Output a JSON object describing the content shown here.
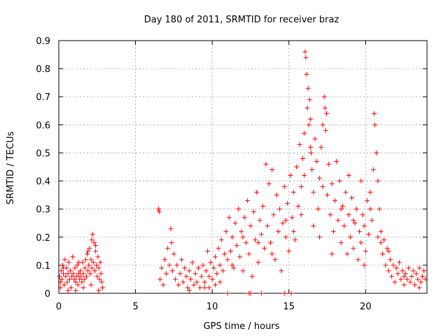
{
  "chart_data": {
    "type": "scatter",
    "title": "Day 180 of 2011, SRMTID for receiver braz",
    "xlabel": "GPS time / hours",
    "ylabel": "SRMTID / TECUs",
    "xlim": [
      0,
      24
    ],
    "ylim": [
      0,
      0.9
    ],
    "xticks": [
      0,
      5,
      10,
      15,
      20
    ],
    "xtick_labels": [
      "0",
      "5",
      "10",
      "15",
      "20"
    ],
    "yticks": [
      0,
      0.1,
      0.2,
      0.3,
      0.4,
      0.5,
      0.6,
      0.7,
      0.8,
      0.9
    ],
    "ytick_labels": [
      "0",
      "0.1",
      "0.2",
      "0.3",
      "0.4",
      "0.5",
      "0.6",
      "0.7",
      "0.8",
      "0.9"
    ],
    "grid": true,
    "marker": "+",
    "color": "#ff0000",
    "series": [
      {
        "name": "SRMTID",
        "points": [
          [
            0.05,
            0.06
          ],
          [
            0.1,
            0.04
          ],
          [
            0.15,
            0.08
          ],
          [
            0.2,
            0.05
          ],
          [
            0.25,
            0.1
          ],
          [
            0.3,
            0.07
          ],
          [
            0.35,
            0.03
          ],
          [
            0.4,
            0.12
          ],
          [
            0.45,
            0.06
          ],
          [
            0.5,
            0.09
          ],
          [
            0.55,
            0.04
          ],
          [
            0.6,
            0.07
          ],
          [
            0.65,
            0.11
          ],
          [
            0.7,
            0.05
          ],
          [
            0.75,
            0.08
          ],
          [
            0.8,
            0.02
          ],
          [
            0.85,
            0.06
          ],
          [
            0.9,
            0.13
          ],
          [
            0.95,
            0.07
          ],
          [
            1.0,
            0.05
          ],
          [
            1.05,
            0.09
          ],
          [
            1.1,
            0.04
          ],
          [
            1.15,
            0.06
          ],
          [
            1.2,
            0.1
          ],
          [
            1.25,
            0.03
          ],
          [
            1.3,
            0.07
          ],
          [
            1.35,
            0.05
          ],
          [
            1.4,
            0.08
          ],
          [
            1.45,
            0.06
          ],
          [
            1.5,
            0.04
          ],
          [
            1.55,
            0.11
          ],
          [
            1.6,
            0.07
          ],
          [
            1.65,
            0.05
          ],
          [
            1.7,
            0.09
          ],
          [
            1.75,
            0.12
          ],
          [
            1.8,
            0.06
          ],
          [
            1.85,
            0.14
          ],
          [
            1.9,
            0.08
          ],
          [
            1.95,
            0.1
          ],
          [
            2.0,
            0.16
          ],
          [
            2.05,
            0.07
          ],
          [
            2.1,
            0.12
          ],
          [
            2.15,
            0.09
          ],
          [
            2.2,
            0.21
          ],
          [
            2.25,
            0.11
          ],
          [
            2.3,
            0.18
          ],
          [
            2.35,
            0.08
          ],
          [
            2.4,
            0.15
          ],
          [
            2.45,
            0.1
          ],
          [
            2.5,
            0.06
          ],
          [
            2.55,
            0.13
          ],
          [
            2.6,
            0.09
          ],
          [
            2.65,
            0.05
          ],
          [
            2.7,
            0.11
          ],
          [
            2.75,
            0.07
          ],
          [
            2.8,
            0.04
          ],
          [
            2.85,
            0.02
          ],
          [
            0.1,
            0.02
          ],
          [
            0.6,
            0.01
          ],
          [
            1.1,
            0.01
          ],
          [
            1.6,
            0.02
          ],
          [
            2.1,
            0.03
          ],
          [
            2.6,
            0.01
          ],
          [
            0.3,
            0.09
          ],
          [
            1.3,
            0.11
          ],
          [
            2.4,
            0.17
          ],
          [
            2.15,
            0.19
          ],
          [
            1.9,
            0.15
          ],
          [
            6.5,
            0.3
          ],
          [
            6.55,
            0.29
          ],
          [
            6.6,
            0.05
          ],
          [
            6.7,
            0.09
          ],
          [
            6.8,
            0.03
          ],
          [
            6.9,
            0.12
          ],
          [
            7.0,
            0.07
          ],
          [
            7.1,
            0.16
          ],
          [
            7.2,
            0.1
          ],
          [
            7.3,
            0.23
          ],
          [
            7.35,
            0.18
          ],
          [
            7.4,
            0.08
          ],
          [
            7.5,
            0.14
          ],
          [
            7.6,
            0.05
          ],
          [
            7.7,
            0.1
          ],
          [
            7.8,
            0.03
          ],
          [
            7.9,
            0.07
          ],
          [
            8.0,
            0.12
          ],
          [
            8.1,
            0.04
          ],
          [
            8.2,
            0.09
          ],
          [
            8.3,
            0.06
          ],
          [
            8.4,
            0.02
          ],
          [
            8.5,
            0.08
          ],
          [
            8.6,
            0.05
          ],
          [
            8.7,
            0.11
          ],
          [
            8.8,
            0.03
          ],
          [
            8.9,
            0.07
          ],
          [
            9.0,
            0.04
          ],
          [
            9.1,
            0.09
          ],
          [
            9.2,
            0.02
          ],
          [
            9.3,
            0.06
          ],
          [
            9.4,
            0.1
          ],
          [
            9.5,
            0.04
          ],
          [
            9.6,
            0.08
          ],
          [
            9.7,
            0.15
          ],
          [
            9.8,
            0.06
          ],
          [
            9.9,
            0.11
          ],
          [
            10.0,
            0.05
          ],
          [
            10.1,
            0.09
          ],
          [
            10.2,
            0.13
          ],
          [
            10.3,
            0.07
          ],
          [
            10.4,
            0.16
          ],
          [
            10.5,
            0.1
          ],
          [
            10.6,
            0.19
          ],
          [
            10.7,
            0.08
          ],
          [
            10.8,
            0.14
          ],
          [
            10.9,
            0.22
          ],
          [
            11.0,
            0.12
          ],
          [
            11.1,
            0.27
          ],
          [
            11.2,
            0.15
          ],
          [
            11.3,
            0.2
          ],
          [
            11.4,
            0.09
          ],
          [
            11.5,
            0.25
          ],
          [
            11.6,
            0.17
          ],
          [
            11.7,
            0.3
          ],
          [
            11.8,
            0.13
          ],
          [
            11.9,
            0.22
          ],
          [
            12.0,
            0.08
          ],
          [
            12.1,
            0.27
          ],
          [
            12.2,
            0.18
          ],
          [
            12.3,
            0.33
          ],
          [
            12.4,
            0.14
          ],
          [
            12.5,
            0.24
          ],
          [
            12.6,
            0.06
          ],
          [
            12.7,
            0.29
          ],
          [
            12.8,
            0.19
          ],
          [
            12.9,
            0.36
          ],
          [
            13.0,
            0.11
          ],
          [
            13.1,
            0.26
          ],
          [
            13.2,
            0.21
          ],
          [
            13.3,
            0.31
          ],
          [
            13.4,
            0.16
          ],
          [
            13.5,
            0.46
          ],
          [
            13.6,
            0.24
          ],
          [
            13.7,
            0.39
          ],
          [
            13.8,
            0.18
          ],
          [
            13.9,
            0.44
          ],
          [
            14.0,
            0.28
          ],
          [
            14.1,
            0.12
          ],
          [
            14.2,
            0.35
          ],
          [
            14.3,
            0.22
          ],
          [
            14.4,
            0.3
          ],
          [
            14.5,
            0.08
          ],
          [
            14.6,
            0.25
          ],
          [
            14.7,
            0.38
          ],
          [
            14.8,
            0.2
          ],
          [
            14.9,
            0.32
          ],
          [
            15.0,
            0.15
          ],
          [
            15.1,
            0.42
          ],
          [
            15.2,
            0.27
          ],
          [
            15.3,
            0.36
          ],
          [
            15.4,
            0.19
          ],
          [
            15.5,
            0.45
          ],
          [
            15.6,
            0.31
          ],
          [
            15.7,
            0.53
          ],
          [
            15.8,
            0.38
          ],
          [
            15.9,
            0.48
          ],
          [
            16.0,
            0.57
          ],
          [
            16.05,
            0.86
          ],
          [
            16.1,
            0.84
          ],
          [
            16.15,
            0.78
          ],
          [
            16.2,
            0.66
          ],
          [
            16.25,
            0.73
          ],
          [
            16.3,
            0.6
          ],
          [
            16.35,
            0.69
          ],
          [
            16.4,
            0.52
          ],
          [
            16.5,
            0.44
          ],
          [
            16.6,
            0.36
          ],
          [
            16.7,
            0.55
          ],
          [
            16.8,
            0.47
          ],
          [
            16.9,
            0.3
          ],
          [
            17.0,
            0.41
          ],
          [
            17.1,
            0.52
          ],
          [
            17.2,
            0.38
          ],
          [
            17.3,
            0.7
          ],
          [
            17.35,
            0.66
          ],
          [
            17.4,
            0.58
          ],
          [
            17.5,
            0.35
          ],
          [
            17.6,
            0.46
          ],
          [
            17.7,
            0.28
          ],
          [
            17.8,
            0.39
          ],
          [
            17.9,
            0.22
          ],
          [
            18.0,
            0.33
          ],
          [
            18.1,
            0.47
          ],
          [
            18.2,
            0.26
          ],
          [
            18.3,
            0.4
          ],
          [
            18.4,
            0.18
          ],
          [
            18.5,
            0.31
          ],
          [
            18.6,
            0.24
          ],
          [
            18.7,
            0.36
          ],
          [
            18.8,
            0.14
          ],
          [
            18.9,
            0.28
          ],
          [
            19.0,
            0.2
          ],
          [
            19.1,
            0.34
          ],
          [
            19.2,
            0.16
          ],
          [
            19.3,
            0.25
          ],
          [
            19.4,
            0.3
          ],
          [
            19.5,
            0.12
          ],
          [
            19.6,
            0.22
          ],
          [
            19.7,
            0.18
          ],
          [
            19.8,
            0.28
          ],
          [
            19.9,
            0.24
          ],
          [
            20.0,
            0.15
          ],
          [
            20.1,
            0.33
          ],
          [
            20.2,
            0.21
          ],
          [
            20.3,
            0.36
          ],
          [
            20.4,
            0.26
          ],
          [
            20.5,
            0.44
          ],
          [
            20.55,
            0.64
          ],
          [
            20.6,
            0.6
          ],
          [
            20.7,
            0.5
          ],
          [
            20.8,
            0.4
          ],
          [
            20.9,
            0.3
          ],
          [
            21.0,
            0.22
          ],
          [
            21.1,
            0.14
          ],
          [
            21.2,
            0.19
          ],
          [
            21.3,
            0.1
          ],
          [
            21.4,
            0.16
          ],
          [
            21.5,
            0.08
          ],
          [
            21.6,
            0.12
          ],
          [
            21.7,
            0.06
          ],
          [
            21.8,
            0.1
          ],
          [
            21.9,
            0.04
          ],
          [
            22.0,
            0.09
          ],
          [
            22.1,
            0.07
          ],
          [
            22.2,
            0.11
          ],
          [
            22.3,
            0.05
          ],
          [
            22.4,
            0.08
          ],
          [
            22.5,
            0.03
          ],
          [
            22.6,
            0.07
          ],
          [
            22.7,
            0.05
          ],
          [
            22.8,
            0.09
          ],
          [
            22.9,
            0.04
          ],
          [
            23.0,
            0.06
          ],
          [
            23.1,
            0.08
          ],
          [
            23.2,
            0.03
          ],
          [
            23.3,
            0.07
          ],
          [
            23.4,
            0.05
          ],
          [
            23.5,
            0.09
          ],
          [
            23.6,
            0.04
          ],
          [
            23.7,
            0.06
          ],
          [
            23.8,
            0.08
          ],
          [
            23.9,
            0.05
          ],
          [
            8.5,
            0.01
          ],
          [
            9.5,
            0.02
          ],
          [
            10.2,
            0.03
          ],
          [
            11.0,
            0.0
          ],
          [
            12.5,
            0.0
          ],
          [
            13.2,
            0.0
          ],
          [
            14.7,
            0.0
          ],
          [
            15.15,
            0.0
          ],
          [
            12.4,
            0.0
          ],
          [
            16.4,
            0.62
          ],
          [
            16.45,
            0.5
          ],
          [
            17.2,
            0.6
          ],
          [
            17.45,
            0.64
          ],
          [
            18.9,
            0.42
          ],
          [
            19.7,
            0.4
          ],
          [
            20.3,
            0.3
          ],
          [
            21.0,
            0.18
          ],
          [
            16.0,
            0.42
          ],
          [
            15.8,
            0.28
          ],
          [
            15.3,
            0.22
          ],
          [
            14.8,
            0.26
          ],
          [
            13.9,
            0.14
          ],
          [
            13.0,
            0.18
          ],
          [
            12.0,
            0.2
          ],
          [
            11.3,
            0.1
          ],
          [
            10.5,
            0.04
          ],
          [
            9.8,
            0.02
          ],
          [
            17.0,
            0.2
          ],
          [
            17.8,
            0.14
          ],
          [
            18.4,
            0.3
          ],
          [
            19.2,
            0.26
          ],
          [
            19.9,
            0.1
          ],
          [
            20.8,
            0.2
          ],
          [
            21.5,
            0.15
          ],
          [
            22.5,
            0.06
          ],
          [
            23.5,
            0.02
          ],
          [
            16.6,
            0.24
          ]
        ]
      }
    ]
  }
}
